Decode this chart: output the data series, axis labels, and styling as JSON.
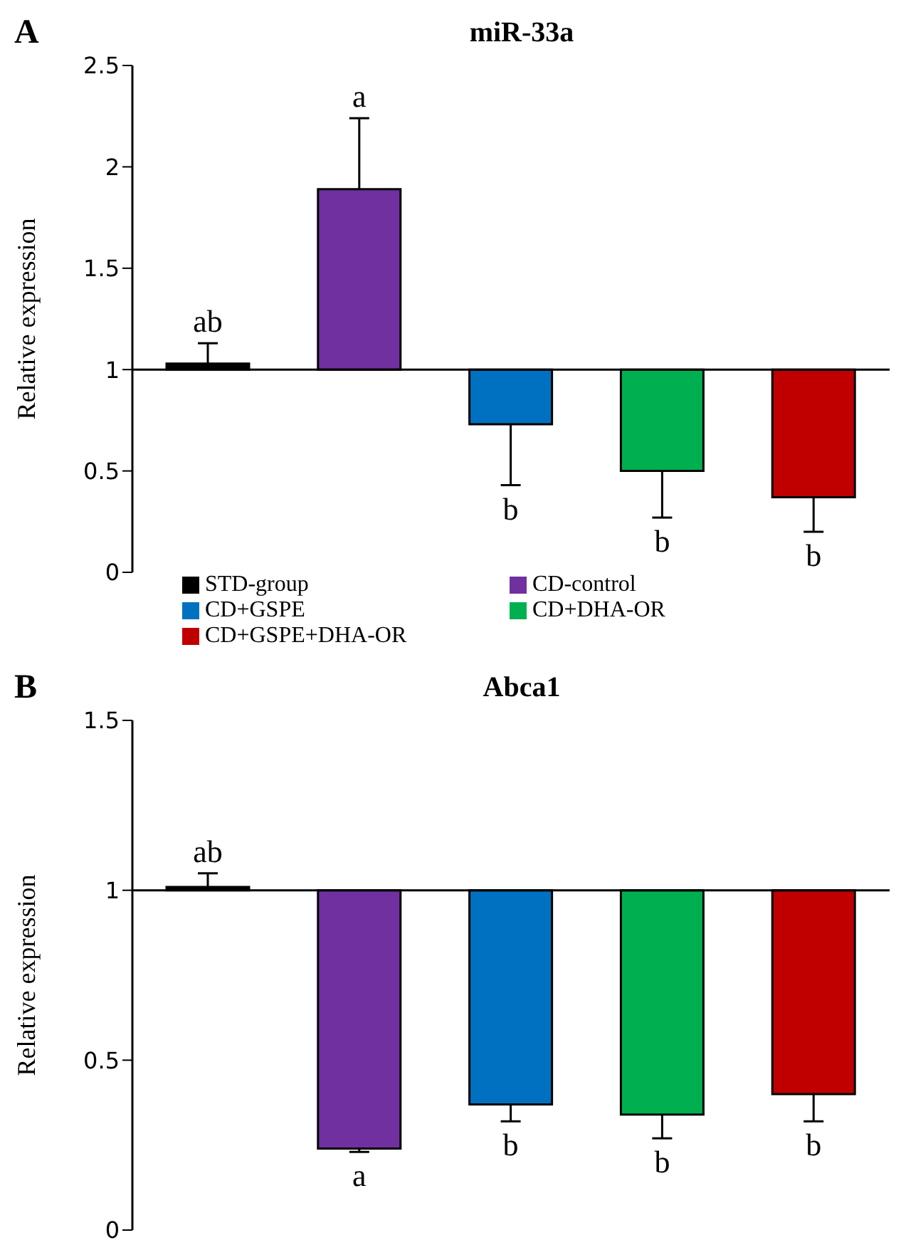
{
  "chart_data": [
    {
      "type": "bar",
      "title": "miR-33a",
      "ylabel": "Relative expression",
      "categories": [
        null,
        null,
        null,
        null,
        null
      ],
      "series": [
        {
          "name": "STD-group",
          "color": "#000000",
          "base": [
            1,
            null,
            null,
            null,
            null
          ],
          "values": [
            0.03,
            null,
            null,
            null,
            null
          ],
          "errors": [
            [
              1.03,
              1.13
            ],
            null,
            null,
            null,
            null
          ]
        },
        {
          "name": "CD-control",
          "color": "#7030a0",
          "base": [
            null,
            1,
            null,
            null,
            null
          ],
          "values": [
            null,
            0.89,
            null,
            null,
            null
          ],
          "errors": [
            null,
            [
              1.89,
              2.24
            ],
            null,
            null,
            null
          ]
        },
        {
          "name": "CD+GSPE",
          "color": "#0070c0",
          "base": [
            null,
            null,
            1,
            null,
            null
          ],
          "values": [
            null,
            null,
            -0.27,
            null,
            null
          ],
          "errors": [
            null,
            null,
            [
              0.43,
              0.73
            ],
            null,
            null
          ]
        },
        {
          "name": "CD+DHA-OR",
          "color": "#00b050",
          "base": [
            null,
            null,
            null,
            1,
            null
          ],
          "values": [
            null,
            null,
            null,
            -0.5,
            null
          ],
          "errors": [
            null,
            null,
            null,
            [
              0.27,
              0.5
            ],
            null
          ]
        },
        {
          "name": "CD+GSPE+DHA-OR",
          "color": "#c00000",
          "base": [
            null,
            null,
            null,
            null,
            1
          ],
          "values": [
            null,
            null,
            null,
            null,
            -0.63
          ],
          "errors": [
            null,
            null,
            null,
            null,
            [
              0.2,
              0.37
            ]
          ]
        }
      ],
      "ylim": [
        0,
        2.5
      ],
      "yticks": [
        0,
        0.5,
        1,
        1.5,
        2,
        2.5
      ],
      "ref_lines": [
        {
          "axis": "y",
          "value": 1
        }
      ],
      "tick_labels": "y",
      "legend": "bottom",
      "annotations": [
        "A",
        "ab",
        "a",
        "b",
        "b",
        "b"
      ]
    },
    {
      "type": "bar",
      "title": "Abca1",
      "ylabel": "Relative expression",
      "categories": [
        null,
        null,
        null,
        null,
        null
      ],
      "series": [
        {
          "color": "#000000",
          "base": [
            1,
            null,
            null,
            null,
            null
          ],
          "values": [
            0.01,
            null,
            null,
            null,
            null
          ],
          "errors": [
            [
              1.01,
              1.05
            ],
            null,
            null,
            null,
            null
          ]
        },
        {
          "color": "#7030a0",
          "base": [
            null,
            1,
            null,
            null,
            null
          ],
          "values": [
            null,
            -0.76,
            null,
            null,
            null
          ],
          "errors": [
            null,
            [
              0.23,
              0.24
            ],
            null,
            null,
            null
          ]
        },
        {
          "color": "#0070c0",
          "base": [
            null,
            null,
            1,
            null,
            null
          ],
          "values": [
            null,
            null,
            -0.63,
            null,
            null
          ],
          "errors": [
            null,
            null,
            [
              0.32,
              0.37
            ],
            null,
            null
          ]
        },
        {
          "color": "#00b050",
          "base": [
            null,
            null,
            null,
            1,
            null
          ],
          "values": [
            null,
            null,
            null,
            -0.66,
            null
          ],
          "errors": [
            null,
            null,
            null,
            [
              0.27,
              0.34
            ],
            null
          ]
        },
        {
          "color": "#c00000",
          "base": [
            null,
            null,
            null,
            null,
            1
          ],
          "values": [
            null,
            null,
            null,
            null,
            -0.6
          ],
          "errors": [
            null,
            null,
            null,
            null,
            [
              0.32,
              0.4
            ]
          ]
        }
      ],
      "ylim": [
        0,
        1.5
      ],
      "yticks": [
        0,
        0.5,
        1,
        1.5
      ],
      "ref_lines": [
        {
          "axis": "y",
          "value": 1
        }
      ],
      "tick_labels": "y",
      "annotations": [
        "B",
        "ab",
        "a",
        "b",
        "b",
        "b"
      ]
    }
  ]
}
